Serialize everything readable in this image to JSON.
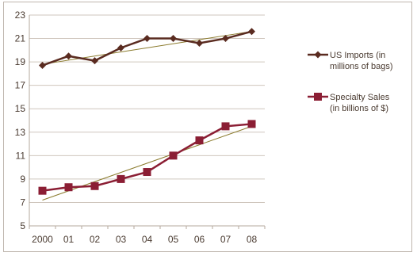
{
  "colors": {
    "frame": "#bfb6ae",
    "axis": "#b5a99e",
    "grid": "#cfc6bd",
    "text": "#4a3b31",
    "us_imports": "#5a2b20",
    "specialty_sales": "#8b1e34",
    "trendline": "#8a7a2c"
  },
  "chart_data": {
    "type": "line",
    "categories": [
      "2000",
      "01",
      "02",
      "03",
      "04",
      "05",
      "06",
      "07",
      "08"
    ],
    "ylim": [
      5,
      23
    ],
    "yticks": [
      "5",
      "7",
      "9",
      "11",
      "13",
      "15",
      "17",
      "19",
      "21",
      "23"
    ],
    "grid": "horizontal",
    "legend_position": "right",
    "series": [
      {
        "name_lines": [
          "US Imports (in",
          "millions of bags)"
        ],
        "marker": "diamond",
        "values": [
          18.7,
          19.5,
          19.1,
          20.2,
          21.0,
          21.0,
          20.6,
          21.0,
          21.6
        ],
        "trendline": [
          18.8,
          21.6
        ]
      },
      {
        "name_lines": [
          "Specialty Sales",
          "(in billions of $)"
        ],
        "marker": "square",
        "values": [
          8.0,
          8.3,
          8.4,
          9.0,
          9.6,
          11.0,
          12.3,
          13.5,
          13.7
        ],
        "trendline": [
          7.2,
          13.5
        ]
      }
    ]
  }
}
